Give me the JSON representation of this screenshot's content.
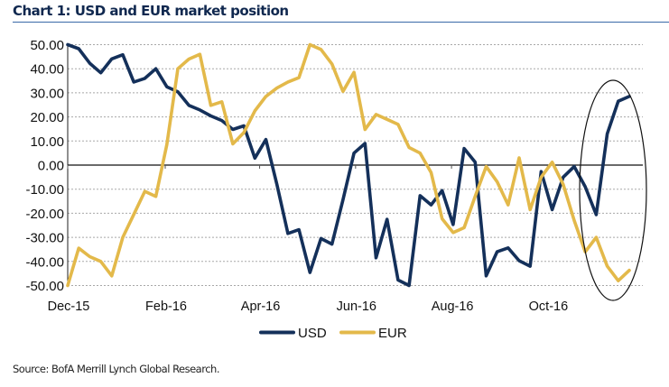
{
  "chart_data": {
    "type": "line",
    "title": "Chart 1: USD and EUR market position",
    "xlabel": "",
    "ylabel": "",
    "ylim": [
      -50,
      50
    ],
    "yticks": [
      50,
      40,
      30,
      20,
      10,
      0,
      -10,
      -20,
      -30,
      -40,
      -50
    ],
    "ytick_labels": [
      "50.00",
      "40.00",
      "30.00",
      "20.00",
      "10.00",
      "0.00",
      "-10.00",
      "-20.00",
      "-30.00",
      "-40.00",
      "-50.00"
    ],
    "xticks": [
      {
        "date": "2015-12-01",
        "label": "Dec-15"
      },
      {
        "date": "2016-02-01",
        "label": "Feb-16"
      },
      {
        "date": "2016-04-01",
        "label": "Apr-16"
      },
      {
        "date": "2016-06-01",
        "label": "Jun-16"
      },
      {
        "date": "2016-08-01",
        "label": "Aug-16"
      },
      {
        "date": "2016-10-01",
        "label": "Oct-16"
      }
    ],
    "grid": "horizontal dotted",
    "legend_position": "bottom",
    "annotation": "ellipse highlighting latest weeks",
    "x": [
      "2015-12-01",
      "2015-12-08",
      "2015-12-15",
      "2015-12-22",
      "2015-12-29",
      "2016-01-05",
      "2016-01-12",
      "2016-01-19",
      "2016-01-26",
      "2016-02-02",
      "2016-02-09",
      "2016-02-16",
      "2016-02-23",
      "2016-03-01",
      "2016-03-08",
      "2016-03-15",
      "2016-03-22",
      "2016-03-29",
      "2016-04-05",
      "2016-04-12",
      "2016-04-19",
      "2016-04-26",
      "2016-05-03",
      "2016-05-10",
      "2016-05-17",
      "2016-05-24",
      "2016-05-31",
      "2016-06-07",
      "2016-06-14",
      "2016-06-21",
      "2016-06-28",
      "2016-07-05",
      "2016-07-12",
      "2016-07-19",
      "2016-07-26",
      "2016-08-02",
      "2016-08-09",
      "2016-08-16",
      "2016-08-23",
      "2016-08-30",
      "2016-09-06",
      "2016-09-13",
      "2016-09-20",
      "2016-09-27",
      "2016-10-04",
      "2016-10-11",
      "2016-10-18",
      "2016-10-25",
      "2016-11-01",
      "2016-11-08",
      "2016-11-15",
      "2016-11-22"
    ],
    "series": [
      {
        "name": "USD",
        "color": "#14305a",
        "values": [
          50,
          48.3,
          42.3,
          38.3,
          44.1,
          45.8,
          34.5,
          36,
          40,
          32.5,
          30.4,
          24.8,
          22.9,
          20.4,
          18.5,
          14.8,
          16.3,
          2.9,
          10.6,
          -8,
          -28.4,
          -26.8,
          -44.6,
          -30.5,
          -32.8,
          -14.4,
          5,
          9,
          -38.5,
          -22.5,
          -47.7,
          -50,
          -12.7,
          -16.5,
          -10.6,
          -24.7,
          6.9,
          1.2,
          -46,
          -36,
          -34.4,
          -39.7,
          -42,
          -2.7,
          -18.5,
          -5,
          -0.6,
          -9,
          -20.6,
          13,
          26.5,
          28.5
        ]
      },
      {
        "name": "EUR",
        "color": "#e3b94a",
        "values": [
          -50,
          -34.5,
          -38,
          -40,
          -46,
          -30,
          -20.5,
          -10.9,
          -13,
          8.5,
          40,
          44,
          46,
          24.8,
          26.3,
          8.8,
          13.5,
          22.5,
          28.5,
          32,
          34.5,
          36.3,
          50,
          48,
          42,
          30.6,
          38.5,
          14.8,
          21,
          19,
          16.9,
          7.3,
          5,
          -3.1,
          -22.3,
          -28,
          -26,
          -13,
          -0.6,
          -6.9,
          -16.5,
          3,
          -18.5,
          -5,
          1.2,
          -8,
          -23,
          -36,
          -30,
          -42,
          -48,
          -43.7
        ]
      }
    ]
  },
  "source": "Source: BofA Merrill Lynch Global Research."
}
